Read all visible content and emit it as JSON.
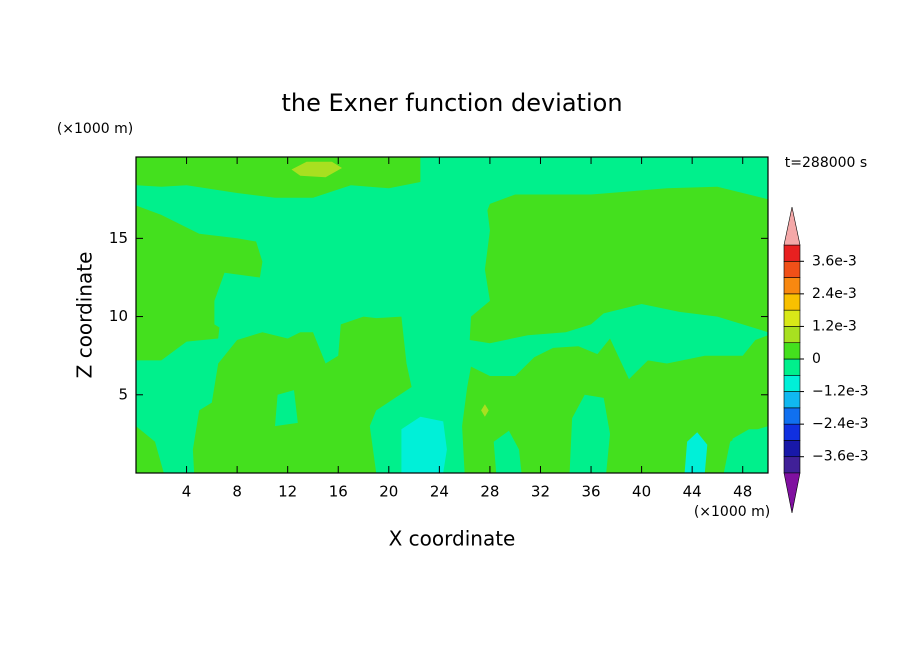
{
  "chart_data": {
    "type": "contour",
    "title": "the Exner function deviation",
    "x_label": "X coordinate",
    "y_label": "Z coordinate",
    "x_unit": "(×1000 m)",
    "y_unit": "(×1000 m)",
    "annotation": "t=288000 s",
    "xlim": [
      0,
      50
    ],
    "ylim": [
      0,
      20.2
    ],
    "xticks": [
      4,
      8,
      12,
      16,
      20,
      24,
      28,
      32,
      36,
      40,
      44,
      48
    ],
    "yticks": [
      5,
      10,
      15
    ],
    "levels": [
      -0.0042,
      -0.0036,
      -0.003,
      -0.0024,
      -0.0018,
      -0.0012,
      -0.0006,
      0,
      0.0006,
      0.0012,
      0.0018,
      0.0024,
      0.003,
      0.0036,
      0.0042
    ],
    "colors": [
      "#402098",
      "#1818a8",
      "#1030e0",
      "#1070f0",
      "#10b8f0",
      "#00f0d8",
      "#00f08c",
      "#44e01e",
      "#a8e020",
      "#d8e818",
      "#f8c000",
      "#f88810",
      "#f05018",
      "#e82020"
    ],
    "under_color": "#8010a0",
    "over_color": "#f4a8a8",
    "cbar_ticks": [
      {
        "value": 0.0036,
        "label": "3.6e-3"
      },
      {
        "value": 0.0024,
        "label": "2.4e-3"
      },
      {
        "value": 0.0012,
        "label": "1.2e-3"
      },
      0,
      {
        "value": -0.0012,
        "label": "−1.2e-3"
      },
      {
        "value": -0.0024,
        "label": "−2.4e-3"
      },
      {
        "value": -0.0036,
        "label": "−3.6e-3"
      }
    ]
  }
}
